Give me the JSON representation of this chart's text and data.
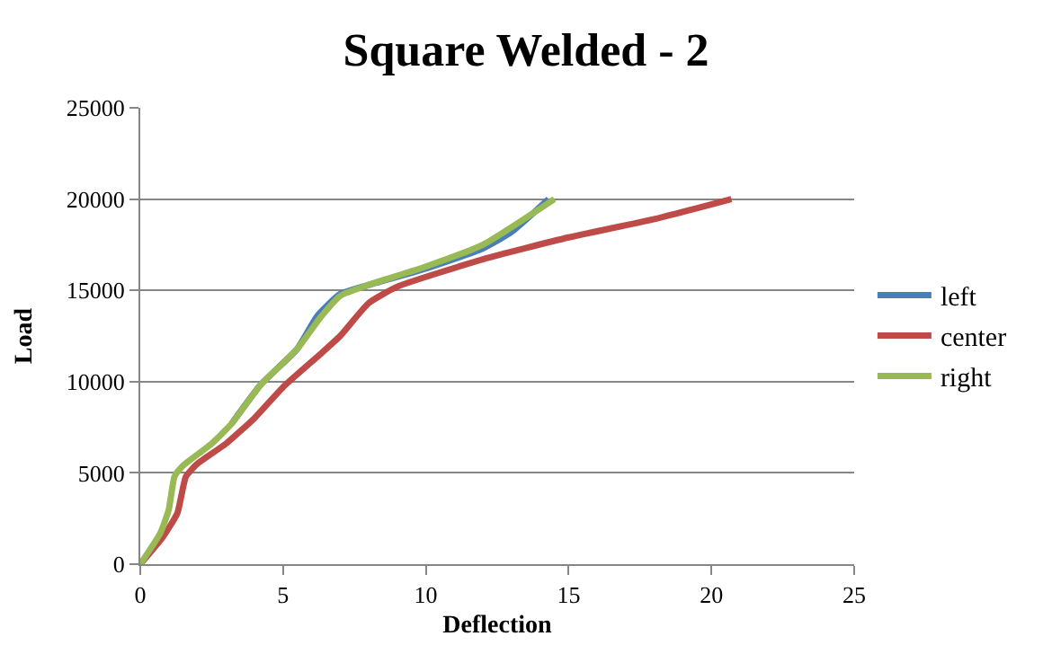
{
  "chart_data": {
    "type": "line",
    "title": "Square Welded - 2",
    "xlabel": "Deflection",
    "ylabel": "Load",
    "xlim": [
      0,
      25
    ],
    "xticks": [
      0,
      5,
      10,
      15,
      20,
      25
    ],
    "ylim": [
      0,
      25000
    ],
    "yticks": [
      0,
      5000,
      10000,
      15000,
      20000,
      25000
    ],
    "grid": "y",
    "legend": "right",
    "marker": "none",
    "series": [
      {
        "name": "left",
        "color": "#4a7ebb",
        "x": [
          3.2,
          4.2,
          5.5,
          6.2,
          7.0,
          8,
          10,
          12,
          13,
          14.3
        ],
        "values": [
          7700,
          9800,
          11800,
          13600,
          14800,
          15300,
          16200,
          17300,
          18200,
          20000
        ]
      },
      {
        "name": "center",
        "color": "#be4b48",
        "x": [
          0,
          0.8,
          1.3,
          1.6,
          2,
          3,
          4,
          5,
          6.3,
          7,
          8,
          9,
          12,
          15,
          18,
          20.7
        ],
        "values": [
          0,
          1500,
          2800,
          4800,
          5500,
          6600,
          8000,
          9700,
          11500,
          12500,
          14300,
          15200,
          16700,
          17900,
          18900,
          20000
        ]
      },
      {
        "name": "right",
        "color": "#98b954",
        "x": [
          0,
          0.7,
          1.0,
          1.2,
          1.5,
          2.5,
          3.2,
          4.2,
          5.5,
          6.3,
          7.0,
          8,
          10,
          12,
          14.5
        ],
        "values": [
          0,
          1700,
          3000,
          4800,
          5400,
          6600,
          7700,
          9800,
          11800,
          13500,
          14700,
          15300,
          16300,
          17500,
          20000
        ]
      }
    ]
  }
}
